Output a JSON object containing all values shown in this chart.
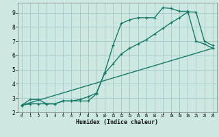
{
  "title": "",
  "xlabel": "Humidex (Indice chaleur)",
  "bg_color": "#cce8e0",
  "grid_color": "#aacccc",
  "line_color": "#1a7a6a",
  "xlim": [
    -0.5,
    23.5
  ],
  "ylim": [
    2.0,
    9.7
  ],
  "xticks": [
    0,
    1,
    2,
    3,
    4,
    5,
    6,
    7,
    8,
    9,
    10,
    11,
    12,
    13,
    14,
    15,
    16,
    17,
    18,
    19,
    20,
    21,
    22,
    23
  ],
  "yticks": [
    2,
    3,
    4,
    5,
    6,
    7,
    8,
    9
  ],
  "line1_x": [
    0,
    1,
    2,
    3,
    4,
    5,
    6,
    7,
    8,
    9,
    10,
    11,
    12,
    13,
    14,
    15,
    16,
    17,
    18,
    19,
    20,
    21,
    22,
    23
  ],
  "line1_y": [
    2.5,
    2.9,
    2.9,
    2.6,
    2.6,
    2.8,
    2.8,
    2.8,
    2.8,
    3.3,
    4.8,
    6.7,
    8.25,
    8.5,
    8.65,
    8.65,
    8.65,
    9.35,
    9.3,
    9.1,
    9.1,
    7.0,
    6.8,
    6.5
  ],
  "line2_x": [
    0,
    1,
    2,
    3,
    4,
    5,
    6,
    7,
    8,
    9,
    10,
    11,
    12,
    13,
    14,
    15,
    16,
    17,
    18,
    19,
    20,
    21,
    22,
    23
  ],
  "line2_y": [
    2.5,
    2.6,
    2.6,
    2.6,
    2.6,
    2.8,
    2.8,
    2.9,
    3.1,
    3.35,
    4.75,
    5.4,
    6.1,
    6.5,
    6.8,
    7.1,
    7.5,
    7.9,
    8.3,
    8.65,
    9.05,
    9.05,
    7.0,
    6.7
  ],
  "line3_x": [
    0,
    23
  ],
  "line3_y": [
    2.5,
    6.5
  ]
}
